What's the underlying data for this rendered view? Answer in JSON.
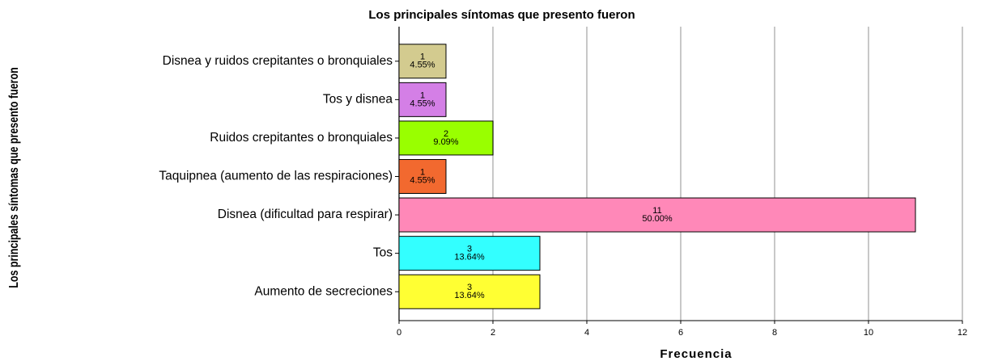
{
  "chart_data": {
    "type": "barh",
    "title": "Los principales síntomas que presento fueron",
    "x_label": "Frecuencia",
    "y_label": "Los principales síntomas que presento fueron",
    "categories": [
      "Disnea y ruidos crepitantes o bronquiales",
      "Tos y disnea",
      "Ruidos crepitantes o bronquiales",
      "Taquipnea (aumento de las respiraciones)",
      "Disnea (dificultad para respirar)",
      "Tos",
      "Aumento de secreciones"
    ],
    "values": [
      1,
      1,
      2,
      1,
      11,
      3,
      3
    ],
    "percent_labels": [
      "4.55%",
      "4.55%",
      "9.09%",
      "4.55%",
      "50.00%",
      "13.64%",
      "13.64%"
    ],
    "colors": [
      "#d3cb8f",
      "#d47fe6",
      "#99ff00",
      "#f2692f",
      "#ff88b8",
      "#33ffff",
      "#ffff33"
    ],
    "xlim": [
      0,
      12
    ],
    "xticks": [
      0,
      2,
      4,
      6,
      8,
      10,
      12
    ],
    "grid": true
  }
}
